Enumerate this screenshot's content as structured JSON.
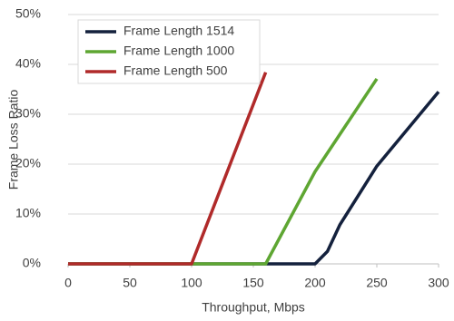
{
  "chart_data": {
    "type": "line",
    "xlabel": "Throughput, Mbps",
    "ylabel": "Frame Loss Ratio",
    "series": [
      {
        "name": "Frame Length 1514",
        "color": "#14213d",
        "x": [
          0,
          200,
          210,
          220,
          250,
          300
        ],
        "values": [
          0,
          0,
          2.5,
          7.8,
          19.6,
          34.5
        ]
      },
      {
        "name": "Frame Length 1000",
        "color": "#5ea632",
        "x": [
          0,
          160,
          200,
          250
        ],
        "values": [
          0,
          0,
          18.5,
          37.1
        ]
      },
      {
        "name": "Frame Length 500",
        "color": "#b02a2a",
        "x": [
          0,
          100,
          160
        ],
        "values": [
          0,
          0,
          38.4
        ]
      }
    ],
    "xlim": [
      0,
      300
    ],
    "xticks": [
      0,
      50,
      100,
      150,
      200,
      250,
      300
    ],
    "ylim": [
      0,
      50
    ],
    "yticks": [
      {
        "value": 0,
        "label": "0%"
      },
      {
        "value": 10,
        "label": "10%"
      },
      {
        "value": 20,
        "label": "20%"
      },
      {
        "value": 30,
        "label": "30%"
      },
      {
        "value": 40,
        "label": "40%"
      },
      {
        "value": 50,
        "label": "50%"
      }
    ],
    "grid": true,
    "legend": "upper-left"
  }
}
